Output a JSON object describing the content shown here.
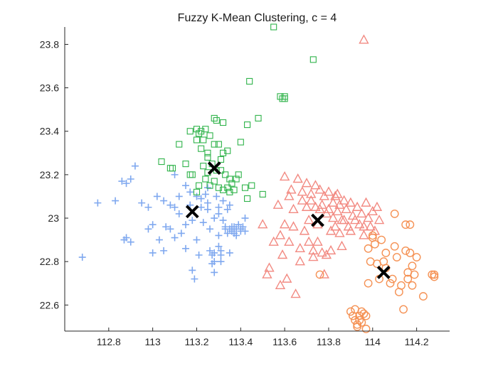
{
  "chart_data": {
    "type": "scatter",
    "title": "Fuzzy K-Mean Clustering, c = 4",
    "xlabel": "",
    "ylabel": "",
    "xlim": [
      112.6,
      114.35
    ],
    "ylim": [
      22.48,
      23.88
    ],
    "xticks": [
      "112.8",
      "113",
      "113.2",
      "113.4",
      "113.6",
      "113.8",
      "114",
      "114.2"
    ],
    "yticks": [
      "22.6",
      "22.8",
      "23",
      "23.2",
      "23.4",
      "23.6",
      "23.8"
    ],
    "grid": false,
    "legend": "none",
    "series": [
      {
        "marker": "plus",
        "color": "#7fa8ef",
        "points": [
          [
            112.68,
            22.82
          ],
          [
            112.75,
            23.07
          ],
          [
            112.83,
            23.08
          ],
          [
            112.86,
            23.17
          ],
          [
            112.88,
            23.16
          ],
          [
            112.9,
            23.18
          ],
          [
            112.87,
            22.9
          ],
          [
            112.88,
            22.91
          ],
          [
            112.9,
            22.89
          ],
          [
            112.92,
            23.24
          ],
          [
            112.95,
            23.07
          ],
          [
            112.98,
            23.05
          ],
          [
            112.98,
            22.95
          ],
          [
            113.0,
            22.97
          ],
          [
            113.0,
            22.84
          ],
          [
            113.02,
            23.1
          ],
          [
            113.03,
            22.9
          ],
          [
            113.05,
            23.08
          ],
          [
            113.05,
            22.85
          ],
          [
            113.06,
            22.96
          ],
          [
            113.08,
            23.06
          ],
          [
            113.08,
            22.95
          ],
          [
            113.1,
            23.2
          ],
          [
            113.1,
            23.05
          ],
          [
            113.1,
            22.91
          ],
          [
            113.12,
            23.1
          ],
          [
            113.12,
            23.02
          ],
          [
            113.13,
            22.93
          ],
          [
            113.15,
            23.15
          ],
          [
            113.15,
            22.97
          ],
          [
            113.15,
            22.86
          ],
          [
            113.17,
            23.12
          ],
          [
            113.17,
            23.06
          ],
          [
            113.18,
            22.99
          ],
          [
            113.18,
            22.76
          ],
          [
            113.19,
            22.72
          ],
          [
            113.2,
            23.1
          ],
          [
            113.2,
            22.9
          ],
          [
            113.21,
            22.83
          ],
          [
            113.22,
            23.09
          ],
          [
            113.22,
            23.05
          ],
          [
            113.23,
            22.98
          ],
          [
            113.24,
            23.11
          ],
          [
            113.25,
            23.07
          ],
          [
            113.25,
            23.04
          ],
          [
            113.25,
            23.14
          ],
          [
            113.26,
            22.95
          ],
          [
            113.26,
            22.85
          ],
          [
            113.27,
            22.83
          ],
          [
            113.27,
            22.79
          ],
          [
            113.28,
            22.84
          ],
          [
            113.28,
            22.8
          ],
          [
            113.28,
            22.75
          ],
          [
            113.29,
            23.1
          ],
          [
            113.3,
            23.05
          ],
          [
            113.3,
            23.02
          ],
          [
            113.3,
            22.92
          ],
          [
            113.31,
            22.85
          ],
          [
            113.31,
            22.8
          ],
          [
            113.32,
            23.08
          ],
          [
            113.32,
            22.99
          ],
          [
            113.33,
            22.96
          ],
          [
            113.33,
            22.95
          ],
          [
            113.34,
            23.04
          ],
          [
            113.34,
            22.93
          ],
          [
            113.35,
            23.06
          ],
          [
            113.35,
            22.95
          ],
          [
            113.35,
            22.84
          ],
          [
            113.36,
            22.96
          ],
          [
            113.36,
            22.94
          ],
          [
            113.37,
            22.96
          ],
          [
            113.37,
            22.93
          ],
          [
            113.38,
            22.95
          ],
          [
            113.38,
            22.92
          ],
          [
            113.39,
            22.97
          ],
          [
            113.4,
            22.94
          ],
          [
            113.4,
            22.95
          ],
          [
            113.41,
            22.96
          ],
          [
            113.42,
            22.94
          ],
          [
            113.42,
            23.0
          ],
          [
            113.28,
            23.0
          ],
          [
            113.3,
            22.87
          ],
          [
            113.31,
            22.83
          ]
        ]
      },
      {
        "marker": "square",
        "color": "#2fb34a",
        "points": [
          [
            113.04,
            23.26
          ],
          [
            113.08,
            23.23
          ],
          [
            113.09,
            23.23
          ],
          [
            113.12,
            23.34
          ],
          [
            113.15,
            23.25
          ],
          [
            113.17,
            23.4
          ],
          [
            113.17,
            23.2
          ],
          [
            113.18,
            23.2
          ],
          [
            113.2,
            23.41
          ],
          [
            113.2,
            23.36
          ],
          [
            113.2,
            23.12
          ],
          [
            113.21,
            23.39
          ],
          [
            113.21,
            23.15
          ],
          [
            113.22,
            23.4
          ],
          [
            113.23,
            23.36
          ],
          [
            113.23,
            23.24
          ],
          [
            113.24,
            23.41
          ],
          [
            113.24,
            23.18
          ],
          [
            113.25,
            23.28
          ],
          [
            113.25,
            23.21
          ],
          [
            113.26,
            23.38
          ],
          [
            113.26,
            23.15
          ],
          [
            113.27,
            23.25
          ],
          [
            113.28,
            23.46
          ],
          [
            113.28,
            23.34
          ],
          [
            113.28,
            23.17
          ],
          [
            113.29,
            23.45
          ],
          [
            113.29,
            23.22
          ],
          [
            113.3,
            23.34
          ],
          [
            113.3,
            23.14
          ],
          [
            113.31,
            23.27
          ],
          [
            113.31,
            23.22
          ],
          [
            113.32,
            23.44
          ],
          [
            113.32,
            23.3
          ],
          [
            113.32,
            23.13
          ],
          [
            113.33,
            23.2
          ],
          [
            113.34,
            23.31
          ],
          [
            113.34,
            23.14
          ],
          [
            113.35,
            23.18
          ],
          [
            113.35,
            23.12
          ],
          [
            113.36,
            23.16
          ],
          [
            113.37,
            23.13
          ],
          [
            113.38,
            23.18
          ],
          [
            113.39,
            23.2
          ],
          [
            113.4,
            23.35
          ],
          [
            113.42,
            23.14
          ],
          [
            113.43,
            23.43
          ],
          [
            113.43,
            23.09
          ],
          [
            113.44,
            23.63
          ],
          [
            113.45,
            23.15
          ],
          [
            113.48,
            23.46
          ],
          [
            113.5,
            23.11
          ],
          [
            113.55,
            23.88
          ],
          [
            113.58,
            23.56
          ],
          [
            113.59,
            23.55
          ],
          [
            113.6,
            23.56
          ],
          [
            113.6,
            23.55
          ],
          [
            113.73,
            23.73
          ],
          [
            113.25,
            23.3
          ],
          [
            113.22,
            23.32
          ]
        ]
      },
      {
        "marker": "triangle",
        "color": "#f28a82",
        "points": [
          [
            113.5,
            22.97
          ],
          [
            113.52,
            22.74
          ],
          [
            113.53,
            22.77
          ],
          [
            113.55,
            22.89
          ],
          [
            113.57,
            23.06
          ],
          [
            113.58,
            22.92
          ],
          [
            113.59,
            22.83
          ],
          [
            113.6,
            23.19
          ],
          [
            113.6,
            22.97
          ],
          [
            113.61,
            22.72
          ],
          [
            113.62,
            23.1
          ],
          [
            113.62,
            22.89
          ],
          [
            113.63,
            23.13
          ],
          [
            113.64,
            23.04
          ],
          [
            113.64,
            22.96
          ],
          [
            113.65,
            22.65
          ],
          [
            113.66,
            23.18
          ],
          [
            113.67,
            22.86
          ],
          [
            113.67,
            22.8
          ],
          [
            113.68,
            23.12
          ],
          [
            113.68,
            23.08
          ],
          [
            113.69,
            22.94
          ],
          [
            113.7,
            23.16
          ],
          [
            113.7,
            23.05
          ],
          [
            113.71,
            22.99
          ],
          [
            113.71,
            22.89
          ],
          [
            113.72,
            23.11
          ],
          [
            113.72,
            23.08
          ],
          [
            113.73,
            22.85
          ],
          [
            113.73,
            22.82
          ],
          [
            113.74,
            23.15
          ],
          [
            113.74,
            23.05
          ],
          [
            113.75,
            22.97
          ],
          [
            113.75,
            22.89
          ],
          [
            113.76,
            23.13
          ],
          [
            113.76,
            23.04
          ],
          [
            113.77,
            23.06
          ],
          [
            113.77,
            22.84
          ],
          [
            113.78,
            23.1
          ],
          [
            113.79,
            23.02
          ],
          [
            113.79,
            22.83
          ],
          [
            113.8,
            23.12
          ],
          [
            113.8,
            23.04
          ],
          [
            113.81,
            22.94
          ],
          [
            113.81,
            22.85
          ],
          [
            113.82,
            23.07
          ],
          [
            113.82,
            23.0
          ],
          [
            113.83,
            23.1
          ],
          [
            113.83,
            22.96
          ],
          [
            113.84,
            23.11
          ],
          [
            113.84,
            23.03
          ],
          [
            113.85,
            23.06
          ],
          [
            113.85,
            22.93
          ],
          [
            113.86,
            22.99
          ],
          [
            113.86,
            22.87
          ],
          [
            113.87,
            23.08
          ],
          [
            113.87,
            22.99
          ],
          [
            113.88,
            23.04
          ],
          [
            113.89,
            22.96
          ],
          [
            113.9,
            23.07
          ],
          [
            113.9,
            22.94
          ],
          [
            113.91,
            23.01
          ],
          [
            113.92,
            22.99
          ],
          [
            113.93,
            23.05
          ],
          [
            113.94,
            22.97
          ],
          [
            113.95,
            23.02
          ],
          [
            113.96,
            22.96
          ],
          [
            113.96,
            22.92
          ],
          [
            113.97,
            23.07
          ],
          [
            113.98,
            23.0
          ],
          [
            113.99,
            22.96
          ],
          [
            114.0,
            23.03
          ],
          [
            114.01,
            22.94
          ],
          [
            114.02,
            23.05
          ],
          [
            114.03,
            22.99
          ],
          [
            113.96,
            23.82
          ],
          [
            113.78,
            22.74
          ],
          [
            113.58,
            22.69
          ]
        ]
      },
      {
        "marker": "circle",
        "color": "#f59255",
        "points": [
          [
            113.76,
            22.74
          ],
          [
            113.9,
            22.57
          ],
          [
            113.91,
            22.55
          ],
          [
            113.92,
            22.58
          ],
          [
            113.92,
            22.53
          ],
          [
            113.93,
            22.51
          ],
          [
            113.93,
            22.5
          ],
          [
            113.94,
            22.53
          ],
          [
            113.94,
            22.55
          ],
          [
            113.95,
            22.52
          ],
          [
            113.95,
            22.57
          ],
          [
            113.96,
            22.56
          ],
          [
            113.97,
            22.49
          ],
          [
            113.97,
            22.55
          ],
          [
            113.98,
            22.7
          ],
          [
            113.98,
            22.86
          ],
          [
            113.99,
            22.8
          ],
          [
            114.0,
            22.92
          ],
          [
            114.0,
            22.91
          ],
          [
            114.01,
            22.88
          ],
          [
            114.02,
            22.79
          ],
          [
            114.03,
            22.72
          ],
          [
            114.04,
            22.9
          ],
          [
            114.05,
            22.8
          ],
          [
            114.06,
            22.77
          ],
          [
            114.06,
            22.84
          ],
          [
            114.08,
            22.7
          ],
          [
            114.09,
            22.72
          ],
          [
            114.1,
            23.02
          ],
          [
            114.1,
            22.87
          ],
          [
            114.11,
            22.82
          ],
          [
            114.12,
            22.66
          ],
          [
            114.13,
            22.69
          ],
          [
            114.14,
            22.58
          ],
          [
            114.15,
            22.97
          ],
          [
            114.15,
            22.85
          ],
          [
            114.16,
            22.72
          ],
          [
            114.16,
            22.75
          ],
          [
            114.17,
            22.97
          ],
          [
            114.17,
            22.84
          ],
          [
            114.18,
            22.78
          ],
          [
            114.18,
            22.69
          ],
          [
            114.19,
            22.74
          ],
          [
            114.2,
            22.82
          ],
          [
            114.23,
            22.64
          ],
          [
            114.27,
            22.74
          ],
          [
            114.28,
            22.74
          ],
          [
            114.28,
            22.73
          ]
        ]
      }
    ],
    "centroids": [
      [
        113.28,
        23.23
      ],
      [
        113.18,
        23.03
      ],
      [
        113.75,
        22.99
      ],
      [
        114.05,
        22.75
      ]
    ],
    "centroid_color": "#000000"
  }
}
